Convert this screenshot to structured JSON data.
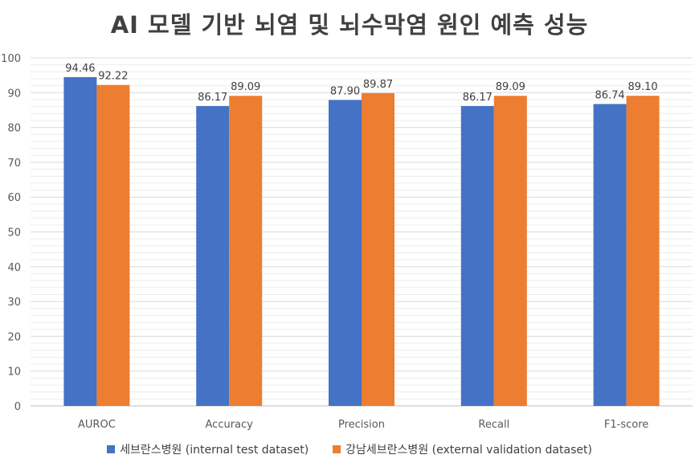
{
  "chart_data": {
    "type": "bar",
    "title": "AI 모델 기반 뇌염 및 뇌수막염 원인 예측 성능",
    "categories": [
      "AUROC",
      "Accuracy",
      "Precision",
      "Recall",
      "F1-score"
    ],
    "series": [
      {
        "name": "세브란스병원 (internal test dataset)",
        "color": "#4472C4",
        "values": [
          94.46,
          86.17,
          87.9,
          86.17,
          86.74
        ],
        "labels": [
          "94.46",
          "86.17",
          "87.90",
          "86.17",
          "86.74"
        ]
      },
      {
        "name": "강남세브란스병원 (external validation dataset)",
        "color": "#ED7D31",
        "values": [
          92.22,
          89.09,
          89.87,
          89.09,
          89.1
        ],
        "labels": [
          "92.22",
          "89.09",
          "89.87",
          "89.09",
          "89.10"
        ]
      }
    ],
    "ylim": [
      0,
      100
    ],
    "yticks": [
      0,
      10,
      20,
      30,
      40,
      50,
      60,
      70,
      80,
      90,
      100
    ],
    "grid": true,
    "legend_position": "bottom"
  }
}
